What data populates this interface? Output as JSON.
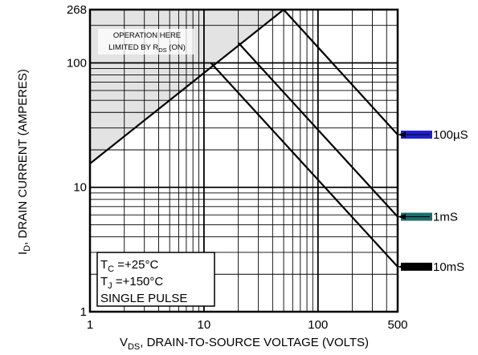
{
  "chart_data": {
    "type": "line",
    "scale": {
      "x": "log",
      "y": "log"
    },
    "xlim": [
      1,
      500
    ],
    "ylim": [
      1,
      268
    ],
    "grid": true,
    "xlabel": {
      "sub": "DS",
      "rest": ", DRAIN-TO-SOURCE VOLTAGE (VOLTS)"
    },
    "ylabel": {
      "sub": "D",
      "rest": ", DRAIN CURRENT (AMPERES)"
    },
    "x_ticks": [
      {
        "v": 1,
        "label": "1"
      },
      {
        "v": 10,
        "label": "10"
      },
      {
        "v": 100,
        "label": "100"
      },
      {
        "v": 500,
        "label": "500"
      }
    ],
    "y_ticks": [
      {
        "v": 1,
        "label": "1"
      },
      {
        "v": 10,
        "label": "10"
      },
      {
        "v": 100,
        "label": "100"
      },
      {
        "v": 268,
        "label": "268"
      }
    ],
    "rds_limit": {
      "line1": "OPERATION HERE",
      "line2_pre": "LIMITED BY R",
      "line2_sub": "DS",
      "line2_post": " (ON)",
      "x": [
        1,
        50
      ],
      "y": [
        15.5,
        268
      ],
      "shade_color": "#e3e3e3"
    },
    "series": [
      {
        "name": "100µS",
        "x": [
          50,
          500
        ],
        "y": [
          268,
          26.5
        ],
        "arrow_color": "#2020cc"
      },
      {
        "name": "1mS",
        "x": [
          20,
          500
        ],
        "y": [
          145,
          5.8
        ],
        "arrow_color": "#1f6b6b"
      },
      {
        "name": "10mS",
        "x": [
          11.5,
          500
        ],
        "y": [
          100,
          2.3
        ],
        "arrow_color": "#000000"
      }
    ],
    "conditions": {
      "tc": {
        "sub": "C",
        "rest": " =+25°C"
      },
      "tj": {
        "sub": "J",
        "rest": " =+150°C"
      },
      "pulse": "SINGLE PULSE"
    }
  }
}
